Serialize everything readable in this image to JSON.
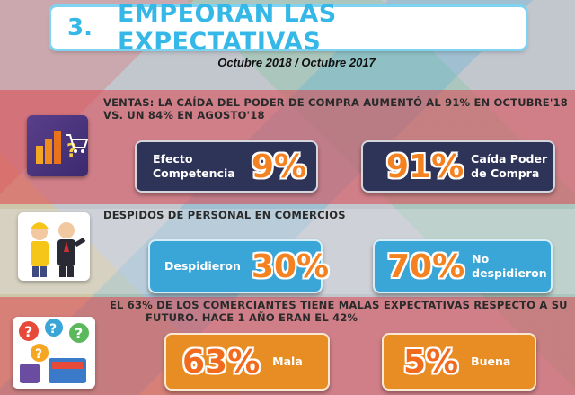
{
  "header": {
    "number": "3.",
    "title": "EMPEORAN LAS EXPECTATIVAS",
    "subtitle": "Octubre 2018 / Octubre 2017"
  },
  "sections": [
    {
      "heading_line1": "VENTAS: LA CAÍDA DEL PODER DE COMPRA AUMENTÓ AL 91% EN OCTUBRE'18",
      "heading_line2": "VS.  UN 84% EN AGOSTO'18",
      "icon": "shopping-cart-icon",
      "cards": [
        {
          "label_line1": "Efecto",
          "label_line2": "Competencia",
          "value": "9%"
        },
        {
          "value": "91%",
          "label_line1": "Caída Poder",
          "label_line2": "de Compra"
        }
      ]
    },
    {
      "heading_line1": "DESPIDOS DE PERSONAL EN COMERCIOS",
      "icon": "workers-icon",
      "cards": [
        {
          "label_line1": "Despidieron",
          "value": "30%"
        },
        {
          "value": "70%",
          "label_line1": "No",
          "label_line2": "despidieron"
        }
      ]
    },
    {
      "heading_line1": "EL 63% DE LOS COMERCIANTES TIENE MALAS EXPECTATIVAS RESPECTO A SU",
      "heading_line2": "FUTURO. HACE  1 AÑO ERAN EL 42%",
      "icon": "question-people-icon",
      "cards": [
        {
          "value": "63%",
          "label_line1": "Mala"
        },
        {
          "value": "5%",
          "label_line1": "Buena"
        }
      ]
    }
  ],
  "colors": {
    "title": "#35b8e8",
    "dark_card": "#2e3358",
    "teal_card": "#3aa6d8",
    "orange_card": "#e78d24",
    "percent": "#f58220"
  }
}
